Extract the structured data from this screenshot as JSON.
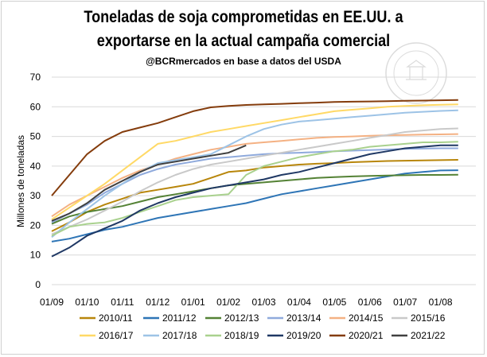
{
  "chart_data": {
    "type": "line",
    "title_line1": "Toneladas de soja comprometidas en EE.UU. a",
    "title_line2": "exportarse en la actual campaña comercial",
    "subtitle": "@BCRmercados  en base a datos del USDA",
    "ylabel": "Millones de toneladas",
    "xlabel": "",
    "ylim": [
      0,
      70
    ],
    "yticks": [
      "0",
      "10",
      "20",
      "30",
      "40",
      "50",
      "60",
      "70"
    ],
    "x_tick_labels": [
      "01/09",
      "01/10",
      "01/11",
      "01/12",
      "01/01",
      "01/02",
      "01/03",
      "01/04",
      "01/05",
      "01/06",
      "01/07",
      "01/08"
    ],
    "x_unit": "months since 01/09 (week-ending dates of the marketing year)",
    "grid": true,
    "legend_position": "bottom",
    "series": [
      {
        "name": "2010/11",
        "color": "#b8860b",
        "x": [
          0,
          0.5,
          1,
          1.5,
          2,
          2.5,
          3,
          3.5,
          4,
          4.5,
          5,
          5.5,
          6,
          6.5,
          7,
          7.5,
          8,
          8.5,
          9,
          9.5,
          10,
          10.5,
          11,
          11.5
        ],
        "values": [
          18,
          21,
          24.5,
          27,
          29,
          31,
          32,
          33,
          34,
          36,
          38,
          38.5,
          39.5,
          40,
          40.5,
          40.8,
          41,
          41.3,
          41.5,
          41.7,
          41.8,
          41.9,
          42,
          42.1
        ]
      },
      {
        "name": "2011/12",
        "color": "#2e75b6",
        "x": [
          0,
          0.5,
          1,
          1.5,
          2,
          2.5,
          3,
          3.5,
          4,
          4.5,
          5,
          5.5,
          6,
          6.5,
          7,
          7.5,
          8,
          8.5,
          9,
          9.5,
          10,
          10.5,
          11,
          11.5
        ],
        "values": [
          14.5,
          15.5,
          17,
          18.5,
          19.5,
          21,
          22.5,
          23.5,
          24.5,
          25.5,
          26.5,
          27.5,
          29,
          30.5,
          31.5,
          32.5,
          33.5,
          34.5,
          35.5,
          36.5,
          37.5,
          38,
          38.5,
          38.6
        ]
      },
      {
        "name": "2012/13",
        "color": "#548235",
        "x": [
          0,
          0.5,
          1,
          1.5,
          2,
          2.5,
          3,
          3.5,
          4,
          4.5,
          5,
          5.5,
          6,
          6.5,
          7,
          7.5,
          8,
          8.5,
          9,
          9.5,
          10,
          10.5,
          11,
          11.5
        ],
        "values": [
          20.5,
          23,
          24.5,
          25.5,
          26.5,
          28,
          29.5,
          30.5,
          31.5,
          32.5,
          33.5,
          34,
          34.5,
          35,
          35.5,
          36,
          36.3,
          36.5,
          36.7,
          36.8,
          36.9,
          37,
          37,
          37.1
        ]
      },
      {
        "name": "2013/14",
        "color": "#8faadc",
        "x": [
          0,
          0.5,
          1,
          1.5,
          2,
          2.5,
          3,
          3.5,
          4,
          4.5,
          5,
          5.5,
          6,
          6.5,
          7,
          7.5,
          8,
          8.5,
          9,
          9.5,
          10,
          10.5,
          11,
          11.5
        ],
        "values": [
          21,
          24,
          27,
          31,
          34,
          37,
          39,
          40.5,
          41.5,
          42.5,
          43,
          43.5,
          44,
          44.3,
          44.5,
          44.7,
          45,
          45.2,
          45.4,
          45.6,
          45.8,
          45.9,
          46,
          46
        ]
      },
      {
        "name": "2014/15",
        "color": "#f4b183",
        "x": [
          0,
          0.5,
          1,
          1.5,
          2,
          2.5,
          3,
          3.5,
          4,
          4.5,
          5,
          5.5,
          6,
          6.5,
          7,
          7.5,
          8,
          8.5,
          9,
          9.5,
          10,
          10.5,
          11,
          11.5
        ],
        "values": [
          23,
          27,
          30,
          33,
          36,
          38.5,
          40.5,
          42.5,
          44,
          45.5,
          46.5,
          47.5,
          48,
          48.5,
          49,
          49.5,
          49.8,
          50,
          50.2,
          50.4,
          50.5,
          50.6,
          50.7,
          50.8
        ]
      },
      {
        "name": "2015/16",
        "color": "#c9c9c9",
        "x": [
          0,
          0.5,
          1,
          1.5,
          2,
          2.5,
          3,
          3.5,
          4,
          4.5,
          5,
          5.5,
          6,
          6.5,
          7,
          7.5,
          8,
          8.5,
          9,
          9.5,
          10,
          10.5,
          11,
          11.5
        ],
        "values": [
          17,
          19.5,
          22,
          25,
          28,
          31.5,
          34.5,
          37,
          39,
          40.5,
          41.5,
          42.5,
          43.5,
          44.5,
          45.5,
          46.5,
          47.5,
          48.5,
          49.5,
          50.5,
          51.5,
          52,
          52.5,
          52.7
        ]
      },
      {
        "name": "2016/17",
        "color": "#ffd966",
        "x": [
          0,
          0.5,
          1,
          1.5,
          2,
          2.5,
          3,
          3.5,
          4,
          4.5,
          5,
          5.5,
          6,
          6.5,
          7,
          7.5,
          8,
          8.5,
          9,
          9.5,
          10,
          10.5,
          11,
          11.5
        ],
        "values": [
          22,
          26,
          30,
          34,
          38.5,
          43,
          47.5,
          48.5,
          50,
          51.5,
          52.5,
          53.5,
          54.5,
          55.5,
          56.5,
          57.5,
          58.5,
          59,
          59.5,
          60,
          60.3,
          60.5,
          60.7,
          60.8
        ]
      },
      {
        "name": "2017/18",
        "color": "#9dc3e6",
        "x": [
          0,
          0.5,
          1,
          1.5,
          2,
          2.5,
          3,
          3.5,
          4,
          4.5,
          5,
          5.5,
          6,
          6.5,
          7,
          7.5,
          8,
          8.5,
          9,
          9.5,
          10,
          10.5,
          11,
          11.5
        ],
        "values": [
          16,
          21,
          25.5,
          30,
          34,
          38,
          41,
          42,
          43,
          44,
          47,
          50,
          52.5,
          54,
          55,
          55.5,
          56,
          56.5,
          57,
          57.5,
          58,
          58.3,
          58.6,
          58.8
        ]
      },
      {
        "name": "2018/19",
        "color": "#a9d18e",
        "x": [
          0,
          0.5,
          1,
          1.5,
          2,
          2.5,
          3,
          3.5,
          4,
          4.5,
          5,
          5.5,
          6,
          6.5,
          7,
          7.5,
          8,
          8.5,
          9,
          9.5,
          10,
          10.5,
          11,
          11.5
        ],
        "values": [
          16.5,
          19.5,
          20.5,
          21,
          22.5,
          24.5,
          26.5,
          28.5,
          29.5,
          30,
          30.5,
          37,
          40,
          41.5,
          43,
          44,
          45,
          45.5,
          46.5,
          47,
          47.5,
          48,
          48,
          48.2
        ]
      },
      {
        "name": "2019/20",
        "color": "#1f3864",
        "x": [
          0,
          0.5,
          1,
          1.5,
          2,
          2.5,
          3,
          3.5,
          4,
          4.5,
          5,
          5.5,
          6,
          6.5,
          7,
          7.5,
          8,
          8.5,
          9,
          9.5,
          10,
          10.5,
          11,
          11.5
        ],
        "values": [
          9.5,
          12.5,
          16.5,
          19,
          21.5,
          25,
          27.5,
          29.5,
          31,
          32.5,
          33.5,
          34.5,
          35.5,
          37,
          38,
          39.5,
          41,
          42.5,
          44,
          45,
          46,
          46.5,
          47,
          47
        ]
      },
      {
        "name": "2020/21",
        "color": "#843c0c",
        "x": [
          0,
          0.5,
          1,
          1.5,
          2,
          2.5,
          3,
          3.5,
          4,
          4.5,
          5,
          5.5,
          6,
          6.5,
          7,
          7.5,
          8,
          8.5,
          9,
          9.5,
          10,
          10.5,
          11,
          11.5
        ],
        "values": [
          30,
          37,
          44,
          48.5,
          51.5,
          53,
          54.5,
          56.5,
          58.5,
          59.8,
          60.3,
          60.6,
          60.8,
          61,
          61.2,
          61.4,
          61.6,
          61.7,
          61.8,
          61.9,
          62,
          62.1,
          62.2,
          62.3
        ]
      },
      {
        "name": "2021/22",
        "color": "#404040",
        "x": [
          0,
          0.5,
          1,
          1.5,
          2,
          2.5,
          3,
          3.5,
          4,
          4.5,
          5,
          5.5
        ],
        "values": [
          21.5,
          24,
          27.5,
          32,
          35,
          38,
          40.5,
          41.5,
          42.5,
          43.5,
          44.5,
          47
        ]
      }
    ]
  }
}
